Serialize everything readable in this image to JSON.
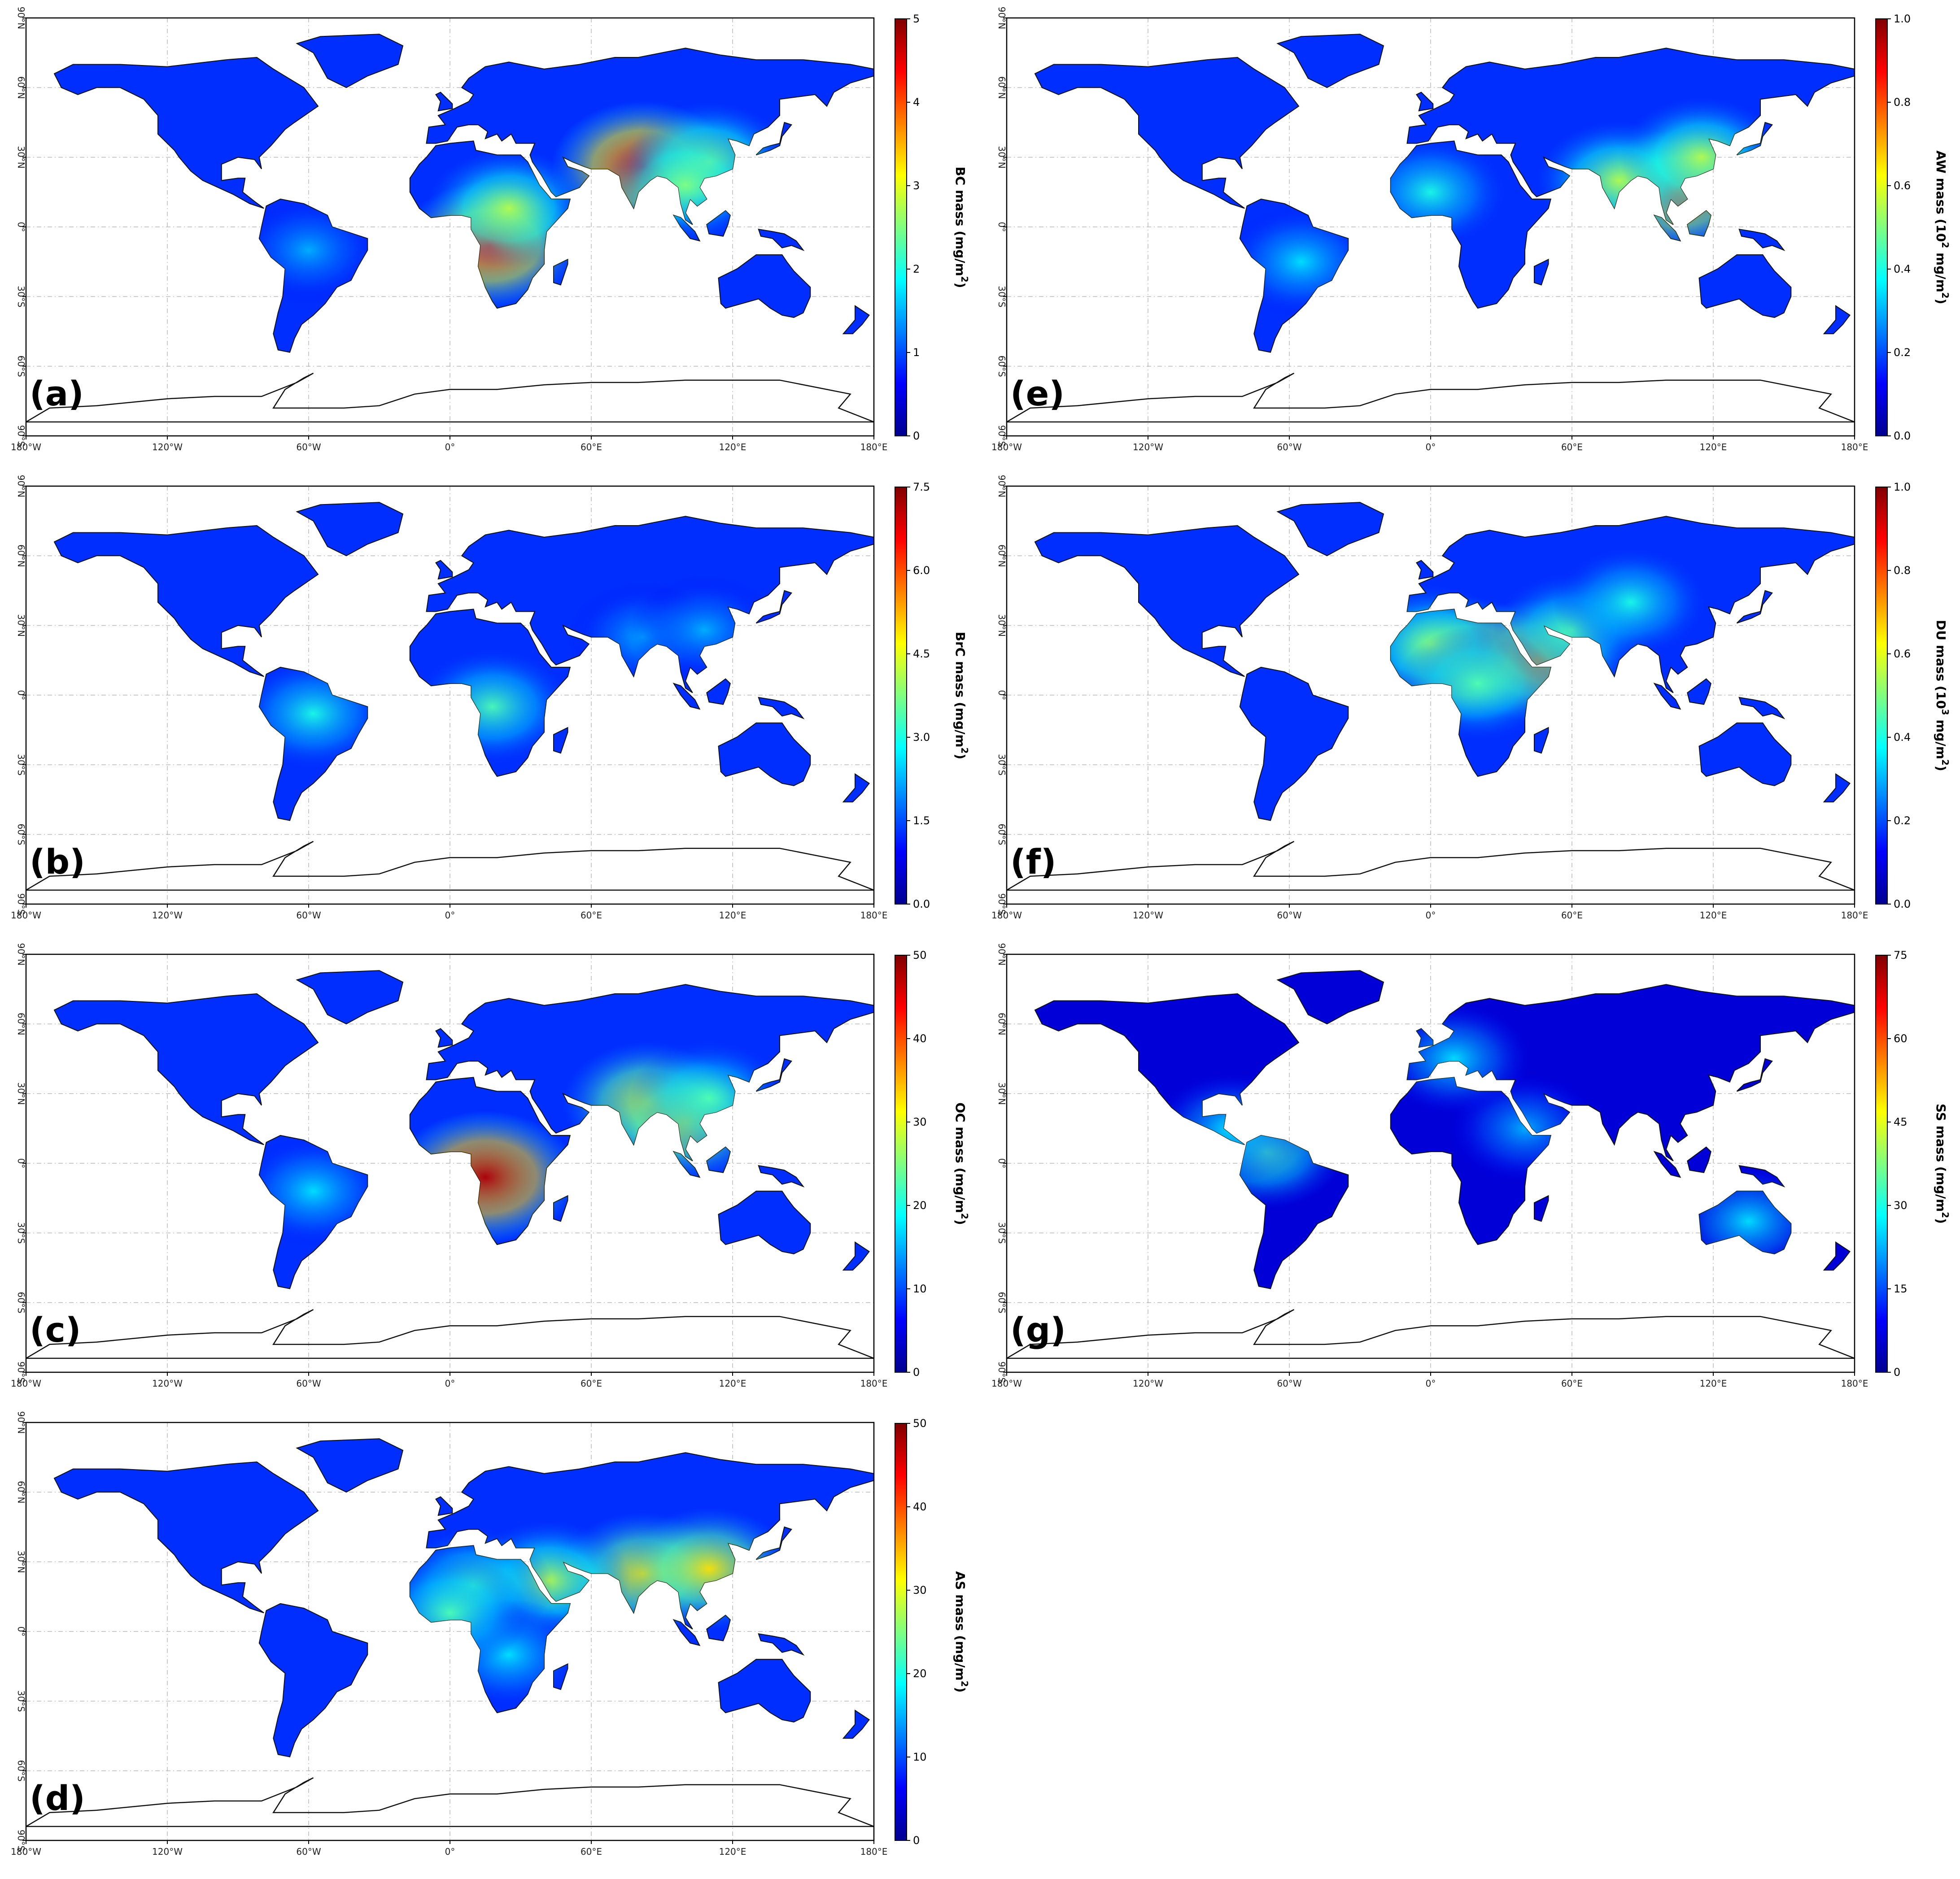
{
  "figure": {
    "longitude_ticks": [
      "180°W",
      "120°W",
      "60°W",
      "0°",
      "60°E",
      "120°E",
      "180°E"
    ],
    "latitude_ticks": [
      "90°N",
      "60°N",
      "30°N",
      "0°",
      "30°S",
      "60°S",
      "90°S"
    ],
    "colormap": "jet",
    "colormap_stops": [
      "#00008f",
      "#0000ff",
      "#0080ff",
      "#00ffff",
      "#80ff80",
      "#ffff00",
      "#ff8000",
      "#ff0000",
      "#800000"
    ]
  },
  "panels": [
    {
      "id": "a",
      "letter": "(a)",
      "colorbar": {
        "title_pre": "BC mass (mg/m",
        "title_sup": "2",
        "title_post": ")",
        "min": 0,
        "max": 5,
        "ticks": [
          "0",
          "1",
          "2",
          "3",
          "4",
          "5"
        ]
      },
      "hotspots": [
        {
          "lon": 17,
          "lat": -8,
          "level": 0.85
        },
        {
          "lon": 82,
          "lat": 26,
          "level": 0.9
        },
        {
          "lon": 25,
          "lat": 8,
          "level": 0.55
        },
        {
          "lon": 110,
          "lat": 28,
          "level": 0.55
        },
        {
          "lon": 100,
          "lat": 18,
          "level": 0.5
        },
        {
          "lon": -60,
          "lat": -10,
          "level": 0.3
        }
      ]
    },
    {
      "id": "b",
      "letter": "(b)",
      "colorbar": {
        "title_pre": "BrC mass (mg/m",
        "title_sup": "2",
        "title_post": ")",
        "min": 0,
        "max": 7.5,
        "ticks": [
          "0.0",
          "1.5",
          "3.0",
          "4.5",
          "6.0",
          "7.5"
        ]
      },
      "hotspots": [
        {
          "lon": -58,
          "lat": -8,
          "level": 0.4
        },
        {
          "lon": 18,
          "lat": -5,
          "level": 0.45
        },
        {
          "lon": 82,
          "lat": 25,
          "level": 0.3
        },
        {
          "lon": 108,
          "lat": 28,
          "level": 0.3
        }
      ]
    },
    {
      "id": "c",
      "letter": "(c)",
      "colorbar": {
        "title_pre": "OC mass (mg/m",
        "title_sup": "2",
        "title_post": ")",
        "min": 0,
        "max": 50,
        "ticks": [
          "0",
          "10",
          "20",
          "30",
          "40",
          "50"
        ]
      },
      "hotspots": [
        {
          "lon": 15,
          "lat": -6,
          "level": 0.95
        },
        {
          "lon": 84,
          "lat": 26,
          "level": 0.65
        },
        {
          "lon": 100,
          "lat": 18,
          "level": 0.65
        },
        {
          "lon": -58,
          "lat": -12,
          "level": 0.35
        },
        {
          "lon": 110,
          "lat": 28,
          "level": 0.45
        }
      ]
    },
    {
      "id": "d",
      "letter": "(d)",
      "colorbar": {
        "title_pre": "AS mass (mg/m",
        "title_sup": "2",
        "title_post": ")",
        "min": 0,
        "max": 50,
        "ticks": [
          "0",
          "10",
          "20",
          "30",
          "40",
          "50"
        ]
      },
      "hotspots": [
        {
          "lon": 82,
          "lat": 25,
          "level": 0.65
        },
        {
          "lon": 110,
          "lat": 27,
          "level": 0.65
        },
        {
          "lon": 42,
          "lat": 22,
          "level": 0.55
        },
        {
          "lon": 10,
          "lat": 20,
          "level": 0.45
        },
        {
          "lon": 25,
          "lat": -10,
          "level": 0.35
        },
        {
          "lon": 0,
          "lat": 8,
          "level": 0.45
        }
      ]
    },
    {
      "id": "e",
      "letter": "(e)",
      "colorbar": {
        "title_pre": "AW mass (10",
        "title_sup": "2",
        "title_post": " mg/m",
        "title_sup2": "2",
        "title_post2": ")",
        "min": 0,
        "max": 1.0,
        "ticks": [
          "0.0",
          "0.2",
          "0.4",
          "0.6",
          "0.8",
          "1.0"
        ]
      },
      "hotspots": [
        {
          "lon": 105,
          "lat": 15,
          "level": 0.75
        },
        {
          "lon": 80,
          "lat": 20,
          "level": 0.55
        },
        {
          "lon": 115,
          "lat": 30,
          "level": 0.55
        },
        {
          "lon": 0,
          "lat": 15,
          "level": 0.4
        },
        {
          "lon": -55,
          "lat": -15,
          "level": 0.35
        }
      ]
    },
    {
      "id": "f",
      "letter": "(f)",
      "colorbar": {
        "title_pre": "DU mass (10",
        "title_sup": "3",
        "title_post": " mg/m",
        "title_sup2": "2",
        "title_post2": ")",
        "min": 0,
        "max": 1.0,
        "ticks": [
          "0.0",
          "0.2",
          "0.4",
          "0.6",
          "0.8",
          "1.0"
        ]
      },
      "hotspots": [
        {
          "lon": 15,
          "lat": 15,
          "level": 0.75
        },
        {
          "lon": 45,
          "lat": 15,
          "level": 0.7
        },
        {
          "lon": 0,
          "lat": 22,
          "level": 0.5
        },
        {
          "lon": 60,
          "lat": 28,
          "level": 0.45
        },
        {
          "lon": 85,
          "lat": 40,
          "level": 0.4
        },
        {
          "lon": 20,
          "lat": 5,
          "level": 0.45
        }
      ]
    },
    {
      "id": "g",
      "letter": "(g)",
      "colorbar": {
        "title_pre": "SS mass (mg/m",
        "title_sup": "2",
        "title_post": ")",
        "min": 0,
        "max": 75,
        "ticks": [
          "0",
          "15",
          "30",
          "45",
          "60",
          "75"
        ]
      },
      "hotspots": [
        {
          "lon": -70,
          "lat": 5,
          "level": 0.45
        },
        {
          "lon": 135,
          "lat": -25,
          "level": 0.35
        },
        {
          "lon": -85,
          "lat": 15,
          "level": 0.35
        },
        {
          "lon": 40,
          "lat": 15,
          "level": 0.3
        },
        {
          "lon": 10,
          "lat": 45,
          "level": 0.35
        }
      ]
    }
  ]
}
